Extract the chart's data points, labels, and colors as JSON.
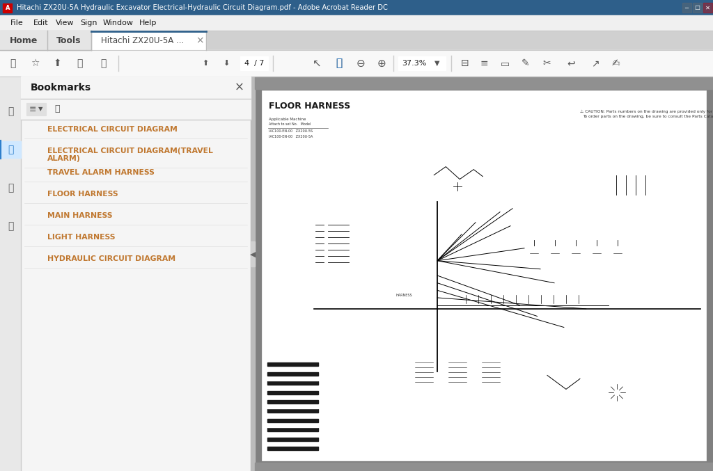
{
  "title_bar_text": "Hitachi ZX20U-5A Hydraulic Excavator Electrical-Hydraulic Circuit Diagram.pdf - Adobe Acrobat Reader DC",
  "title_bar_bg": "#2E5F8A",
  "title_bar_text_color": "#FFFFFF",
  "menu_items": [
    "File",
    "Edit",
    "View",
    "Sign",
    "Window",
    "Help"
  ],
  "menu_bg": "#F0F0F0",
  "tab_home": "Home",
  "tab_tools": "Tools",
  "tab_doc": "Hitachi ZX20U-5A ...",
  "toolbar_bg": "#F8F8F8",
  "page_num": "4  / 7",
  "zoom_level": "37.3%",
  "sidebar_bg": "#F5F5F5",
  "bookmarks_title": "Bookmarks",
  "bookmark_items": [
    "ELECTRICAL CIRCUIT DIAGRAM",
    "ELECTRICAL CIRCUIT DIAGRAM(TRAVEL\nALARM)",
    "TRAVEL ALARM HARNESS",
    "FLOOR HARNESS",
    "MAIN HARNESS",
    "LIGHT HARNESS",
    "HYDRAULIC CIRCUIT DIAGRAM"
  ],
  "bookmark_text_color": "#C07830",
  "page_title": "FLOOR HARNESS",
  "acrobat_icon_color": "#CC0000"
}
